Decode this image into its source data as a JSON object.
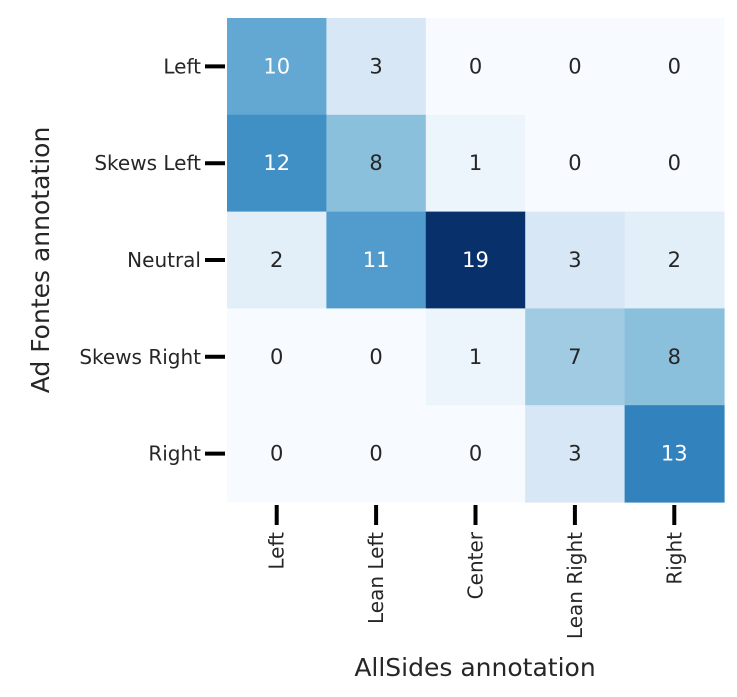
{
  "chart_data": {
    "type": "heatmap",
    "xlabel": "AllSides annotation",
    "ylabel": "Ad Fontes annotation",
    "x_categories": [
      "Left",
      "Lean Left",
      "Center",
      "Lean Right",
      "Right"
    ],
    "y_categories": [
      "Left",
      "Skews Left",
      "Neutral",
      "Skews Right",
      "Right"
    ],
    "values": [
      [
        10,
        3,
        0,
        0,
        0
      ],
      [
        12,
        8,
        1,
        0,
        0
      ],
      [
        2,
        11,
        19,
        3,
        2
      ],
      [
        0,
        0,
        1,
        7,
        8
      ],
      [
        0,
        0,
        0,
        3,
        13
      ]
    ],
    "value_range": [
      0,
      19
    ],
    "colormap": "Blues",
    "annotations": true,
    "grid": false,
    "legend": "none",
    "colors": {
      "low": "#f7fbff",
      "high": "#08306b",
      "dark_text": "#262626",
      "light_text": "#ffffff"
    }
  }
}
